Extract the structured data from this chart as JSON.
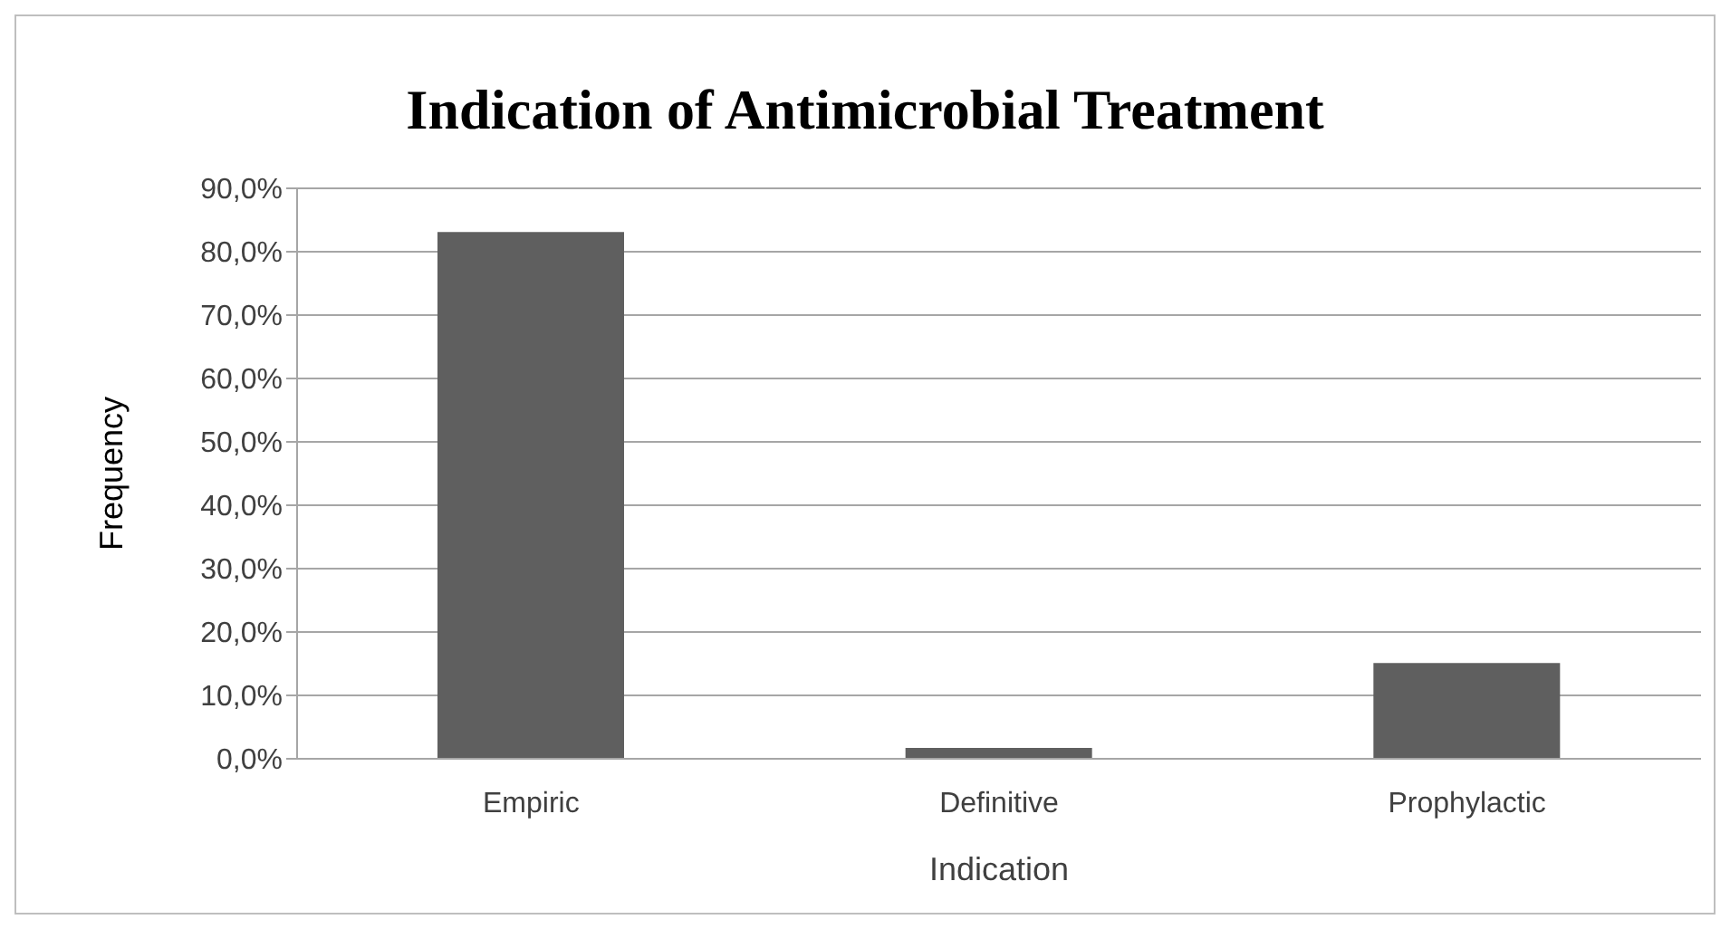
{
  "chart_data": {
    "type": "bar",
    "title": "Indication of Antimicrobial Treatment",
    "xlabel": "Indication",
    "ylabel": "Frequency",
    "categories": [
      "Empiric",
      "Definitive",
      "Prophylactic"
    ],
    "series": [
      {
        "color": "#5f5f5f",
        "values": [
          83.1,
          1.7,
          15.1
        ]
      }
    ],
    "ylim": [
      0,
      90
    ],
    "yticks": [
      {
        "value": 0,
        "label": "0,0%"
      },
      {
        "value": 10,
        "label": "10,0%"
      },
      {
        "value": 20,
        "label": "20,0%"
      },
      {
        "value": 30,
        "label": "30,0%"
      },
      {
        "value": 40,
        "label": "40,0%"
      },
      {
        "value": 50,
        "label": "50,0%"
      },
      {
        "value": 60,
        "label": "60,0%"
      },
      {
        "value": 70,
        "label": "70,0%"
      },
      {
        "value": 80,
        "label": "80,0%"
      },
      {
        "value": 90,
        "label": "90,0%"
      }
    ],
    "grid": "y",
    "legend": false
  }
}
